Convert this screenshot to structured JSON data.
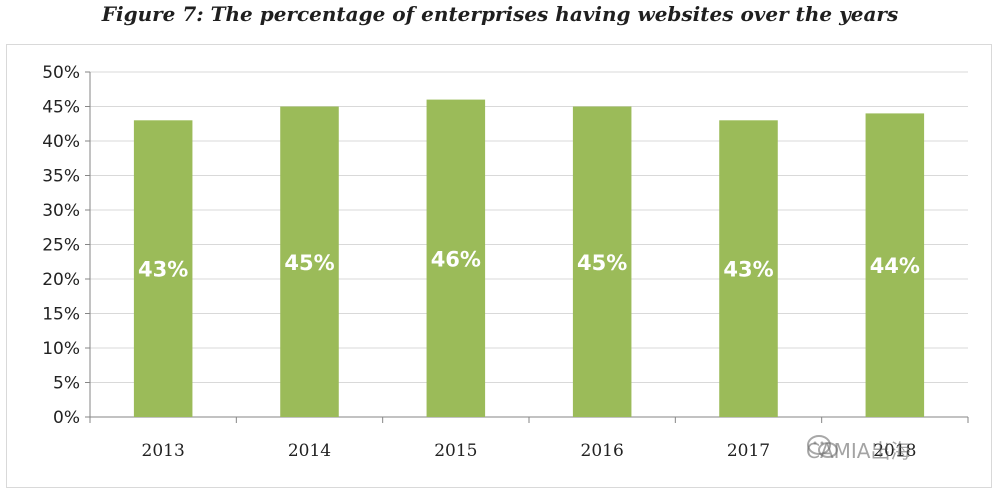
{
  "chart_data": {
    "type": "bar",
    "title": "Figure 7: The percentage of enterprises having websites over the years",
    "categories": [
      "2013",
      "2014",
      "2015",
      "2016",
      "2017",
      "2018"
    ],
    "values": [
      43,
      45,
      46,
      45,
      43,
      44
    ],
    "data_labels": [
      "43%",
      "45%",
      "46%",
      "45%",
      "43%",
      "44%"
    ],
    "y_ticks": [
      0,
      5,
      10,
      15,
      20,
      25,
      30,
      35,
      40,
      45,
      50
    ],
    "y_tick_labels": [
      "0%",
      "5%",
      "10%",
      "15%",
      "20%",
      "25%",
      "30%",
      "35%",
      "40%",
      "45%",
      "50%"
    ],
    "ylim": [
      0,
      50
    ],
    "xlabel": "",
    "ylabel": "",
    "grid": true,
    "bar_color": "#9bbb59",
    "label_color": "#ffffff"
  },
  "watermark": {
    "text": "CAMIA出海",
    "icon": "wechat-icon"
  }
}
